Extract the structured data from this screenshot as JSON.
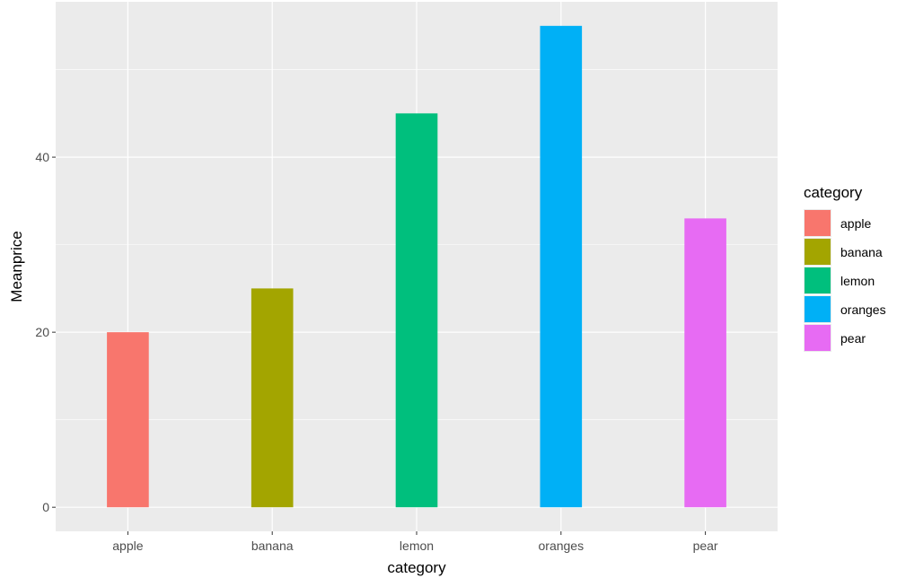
{
  "chart_data": {
    "type": "bar",
    "title": "",
    "xlabel": "category",
    "ylabel": "Meanprice",
    "categories": [
      "apple",
      "banana",
      "lemon",
      "oranges",
      "pear"
    ],
    "values": [
      20,
      25,
      45,
      55,
      33
    ],
    "colors": [
      "#F8766D",
      "#A3A500",
      "#00BF7D",
      "#00B0F6",
      "#E76BF3"
    ],
    "ylim": [
      -2.75,
      57.75
    ],
    "yticks": [
      0,
      20,
      40
    ],
    "grid": true,
    "legend": {
      "title": "category",
      "placement": "right",
      "entries": [
        "apple",
        "banana",
        "lemon",
        "oranges",
        "pear"
      ]
    },
    "panel_background": "#EBEBEB",
    "grid_color": "#FFFFFF"
  }
}
